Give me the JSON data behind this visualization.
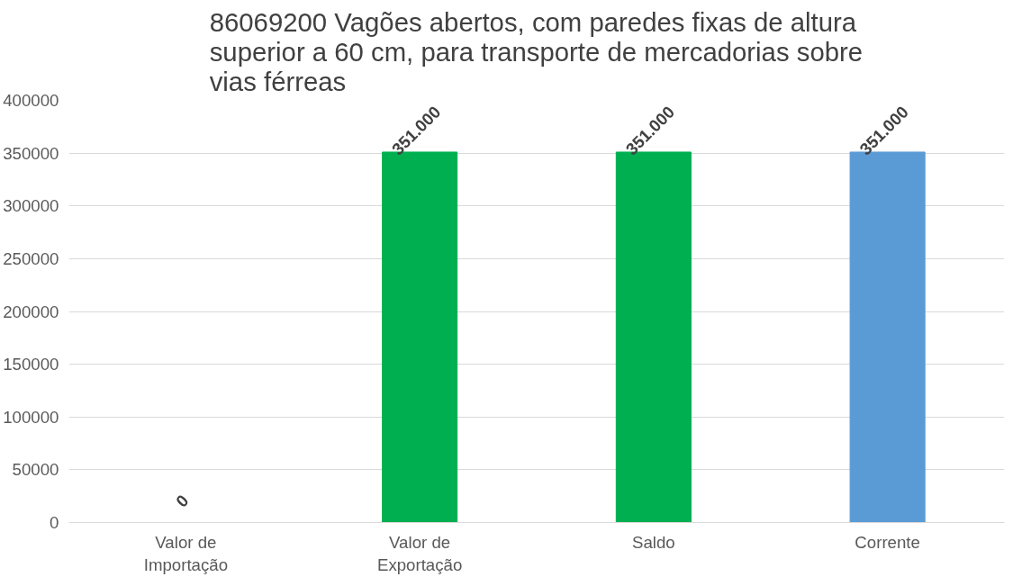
{
  "chart_data": {
    "type": "bar",
    "title": "86069200  Vagões abertos, com paredes fixas de altura superior a 60 cm, para transporte de mercadorias sobre vias férreas",
    "categories": [
      "Valor de Importação",
      "Valor de Exportação",
      "Saldo",
      "Corrente"
    ],
    "values": [
      0,
      351000,
      351000,
      351000
    ],
    "colors": [
      "#00b050",
      "#00b050",
      "#00b050",
      "#5b9bd5"
    ],
    "value_labels": [
      "0",
      "351.000",
      "351.000",
      "351.000"
    ],
    "ylim": [
      0,
      400000
    ],
    "yticks": [
      0,
      50000,
      100000,
      150000,
      200000,
      250000,
      300000,
      350000,
      400000
    ],
    "grid": "y"
  }
}
